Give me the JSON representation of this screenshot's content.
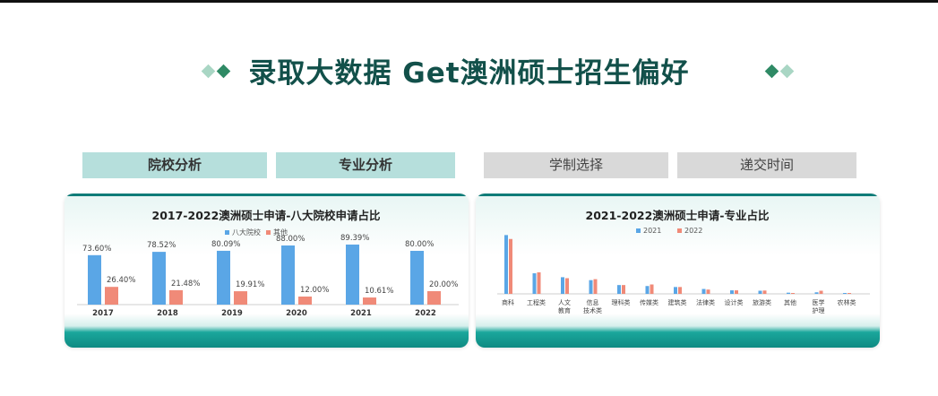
{
  "headline": "录取大数据 Get澳洲硕士招生偏好",
  "colors": {
    "accent": "#12504a",
    "series_a": "#5aa6e6",
    "series_b": "#f08a78",
    "tab_teal": "#b6dfdc",
    "tab_grey": "#d9d9d9"
  },
  "tabs": [
    {
      "label": "院校分析"
    },
    {
      "label": "专业分析"
    },
    {
      "label": "学制选择"
    },
    {
      "label": "递交时间"
    }
  ],
  "chart_data": [
    {
      "type": "bar",
      "title": "2017-2022澳洲硕士申请-八大院校申请占比",
      "categories": [
        "2017",
        "2018",
        "2019",
        "2020",
        "2021",
        "2022"
      ],
      "series": [
        {
          "name": "八大院校",
          "values": [
            73.6,
            78.52,
            80.09,
            88.0,
            89.39,
            80.0
          ],
          "labels": [
            "73.60%",
            "78.52%",
            "80.09%",
            "88.00%",
            "89.39%",
            "80.00%"
          ]
        },
        {
          "name": "其他",
          "values": [
            26.4,
            21.48,
            19.91,
            12.0,
            10.61,
            20.0
          ],
          "labels": [
            "26.40%",
            "21.48%",
            "19.91%",
            "12.00%",
            "10.61%",
            "20.00%"
          ]
        }
      ],
      "ylim": [
        0,
        100
      ],
      "legend": "top-center"
    },
    {
      "type": "bar",
      "title": "2021-2022澳洲硕士申请-专业占比",
      "categories": [
        "商科",
        "工程类",
        "人文 教育",
        "信息 技术类",
        "理科类",
        "传媒类",
        "建筑类",
        "法律类",
        "设计类",
        "旅游类",
        "其他",
        "医学 护理",
        "农林类"
      ],
      "series": [
        {
          "name": "2021",
          "values": [
            30,
            10.5,
            8.5,
            7,
            4.5,
            4,
            3.5,
            2.5,
            1.8,
            1.6,
            0.6,
            0.8,
            0.4
          ]
        },
        {
          "name": "2022",
          "values": [
            28,
            11,
            8,
            7.5,
            4.5,
            4.8,
            3.5,
            2.2,
            1.8,
            1.7,
            0.4,
            1.6,
            0.3
          ]
        }
      ],
      "ylim": [
        0,
        32
      ],
      "legend": "top-center"
    }
  ]
}
